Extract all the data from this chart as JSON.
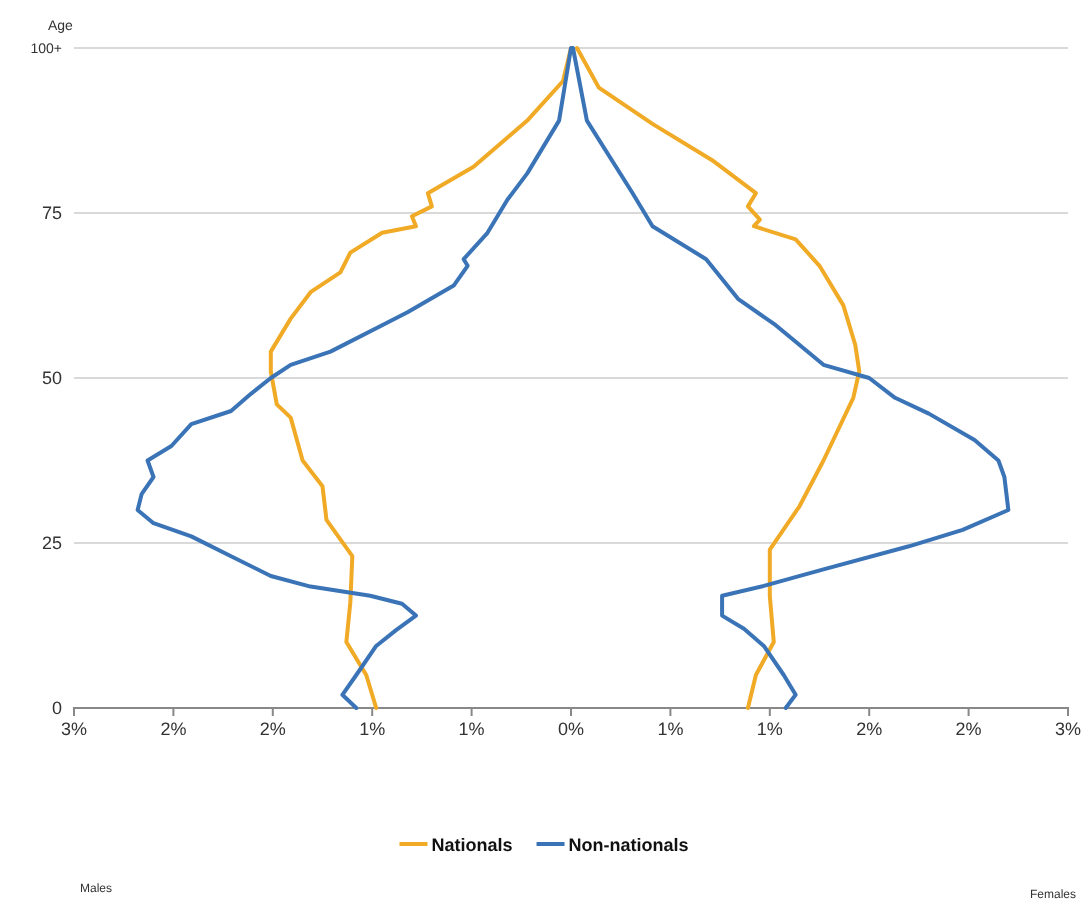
{
  "chart_data": {
    "type": "line",
    "ylabel": "Age",
    "xlim": [
      -2.5,
      2.5
    ],
    "xticks": [
      {
        "value": -2.5,
        "label": "3%"
      },
      {
        "value": -2,
        "label": "2%"
      },
      {
        "value": -1.5,
        "label": "2%"
      },
      {
        "value": -1,
        "label": "1%"
      },
      {
        "value": -0.5,
        "label": "1%"
      },
      {
        "value": 0,
        "label": "0%"
      },
      {
        "value": 0.5,
        "label": "1%"
      },
      {
        "value": 1,
        "label": "1%"
      },
      {
        "value": 1.5,
        "label": "2%"
      },
      {
        "value": 2,
        "label": "2%"
      },
      {
        "value": 2.5,
        "label": "3%"
      }
    ],
    "ylim": [
      0,
      100
    ],
    "yticks": [
      0,
      25,
      50,
      75,
      {
        "value": 100,
        "label": "100+"
      }
    ],
    "grid": "y",
    "legend": "bottom",
    "line_style": "solid",
    "marker": "none",
    "annotations": [
      "Males",
      "Females"
    ],
    "series": [
      {
        "name": "Nationals",
        "color": "#f0aa26",
        "x": [
          0,
          -0.04,
          -0.22,
          -0.49,
          -0.72,
          -0.7,
          -0.8,
          -0.78,
          -0.95,
          -1.11,
          -1.16,
          -1.31,
          -1.41,
          -1.51,
          -1.51,
          -1.48,
          -1.41,
          -1.35,
          -1.25,
          -1.23,
          -1.1,
          -1.11,
          -1.13,
          -1.03,
          -0.98
        ],
        "values": [
          100,
          95,
          89,
          82,
          78,
          76,
          74.5,
          73,
          72,
          69,
          66,
          63,
          59,
          54,
          51,
          46,
          44,
          37.5,
          33.6,
          28.5,
          23,
          16,
          10,
          5,
          0
        ]
      },
      {
        "color": "#f0aa26",
        "x": [
          0.03,
          0.14,
          0.41,
          0.71,
          0.93,
          0.89,
          0.95,
          0.92,
          1.13,
          1.25,
          1.37,
          1.43,
          1.45,
          1.42,
          1.27,
          1.15,
          1,
          1,
          1.02,
          0.93,
          0.89
        ],
        "values": [
          100,
          94,
          88.5,
          83,
          78,
          76,
          74,
          73,
          71,
          67,
          61,
          55,
          51,
          47,
          37.5,
          30.6,
          24,
          17,
          10,
          5,
          0
        ]
      },
      {
        "name": "Non-nationals",
        "color": "#3a74b7",
        "x": [
          0,
          -0.06,
          -0.22,
          -0.32,
          -0.42,
          -0.54,
          -0.52,
          -0.59,
          -0.82,
          -0.95,
          -1.21,
          -1.41,
          -1.51,
          -1.61,
          -1.71,
          -1.91,
          -2.01,
          -2.13,
          -2.1,
          -2.16,
          -2.18,
          -2.1,
          -1.91,
          -1.71,
          -1.51,
          -1.31,
          -1.01,
          -0.85,
          -0.78,
          -0.88,
          -0.98,
          -1.08,
          -1.15,
          -1.08
        ],
        "values": [
          100,
          89,
          81,
          77,
          72,
          68,
          67,
          64,
          60,
          58,
          54,
          52,
          50,
          47.6,
          45,
          43,
          39.7,
          37.5,
          35,
          32.4,
          30,
          28,
          26,
          23,
          20,
          18.4,
          17,
          15.8,
          14,
          11.8,
          9.4,
          5,
          2,
          0
        ]
      },
      {
        "color": "#3a74b7",
        "x": [
          0.01,
          0.08,
          0.31,
          0.41,
          0.68,
          0.84,
          1.03,
          1.27,
          1.5,
          1.63,
          1.8,
          2.03,
          2.15,
          2.18,
          2.2,
          1.97,
          1.7,
          1.27,
          0.97,
          0.76,
          0.76,
          0.87,
          0.97,
          1.07,
          1.13,
          1.08
        ],
        "values": [
          100,
          89,
          78,
          73,
          68,
          62,
          58,
          52,
          50,
          47,
          44.6,
          40.6,
          37.5,
          35,
          30,
          27,
          24.5,
          21,
          18.5,
          17,
          14,
          12,
          9.4,
          5,
          2,
          0
        ]
      }
    ]
  }
}
